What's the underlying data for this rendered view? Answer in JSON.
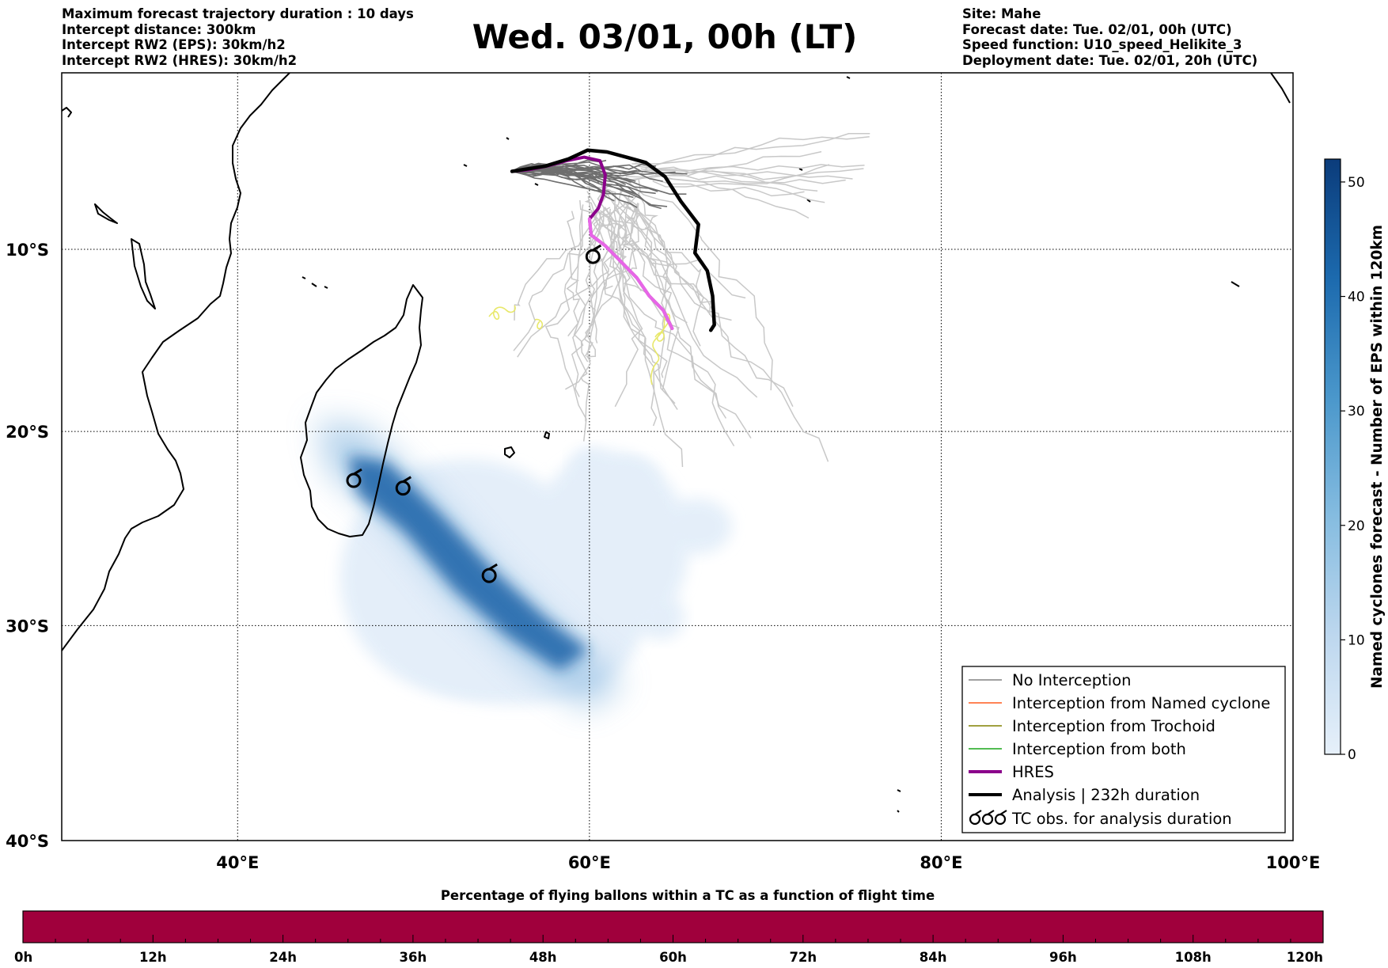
{
  "header": {
    "left": [
      "Maximum forecast trajectory duration : 10 days",
      "Intercept distance: 300km",
      "Intercept RW2 (EPS):  30km/h2",
      "Intercept RW2 (HRES): 30km/h2"
    ],
    "title": "Wed. 03/01, 00h (LT)",
    "right": [
      "Site: Mahe",
      "Forecast date: Tue. 02/01, 00h (UTC)",
      "Speed function: U10_speed_Helikite_3",
      "Deployment date: Tue. 02/01, 20h (UTC)"
    ]
  },
  "map": {
    "lon_range": [
      30,
      100
    ],
    "lat_range": [
      -40,
      0
    ],
    "lon_ticks": [
      {
        "value": 40,
        "label": "40°E"
      },
      {
        "value": 60,
        "label": "60°E"
      },
      {
        "value": 80,
        "label": "80°E"
      },
      {
        "value": 100,
        "label": "100°E"
      }
    ],
    "lat_ticks": [
      {
        "value": -10,
        "label": "10°S"
      },
      {
        "value": -20,
        "label": "20°S"
      },
      {
        "value": -30,
        "label": "30°S"
      },
      {
        "value": -40,
        "label": "40°S"
      }
    ],
    "grid": true,
    "tc_obs": [
      {
        "lon": 60.2,
        "lat": -10.4
      },
      {
        "lon": 46.6,
        "lat": -22.6
      },
      {
        "lon": 49.4,
        "lat": -23.0
      },
      {
        "lon": 54.3,
        "lat": -27.5
      }
    ],
    "analysis_track": [
      [
        55.6,
        -5.6
      ],
      [
        57.5,
        -5.3
      ],
      [
        58.8,
        -4.9
      ],
      [
        59.9,
        -4.4
      ],
      [
        61.0,
        -4.5
      ],
      [
        62.1,
        -4.8
      ],
      [
        63.2,
        -5.1
      ],
      [
        64.3,
        -5.9
      ],
      [
        65.2,
        -7.3
      ],
      [
        66.2,
        -8.6
      ],
      [
        66.0,
        -10.2
      ],
      [
        66.7,
        -11.2
      ],
      [
        67.0,
        -12.6
      ],
      [
        67.1,
        -14.2
      ],
      [
        66.9,
        -14.5
      ]
    ],
    "hres_track": [
      [
        55.6,
        -5.6
      ],
      [
        56.6,
        -5.5
      ],
      [
        57.6,
        -5.3
      ],
      [
        58.7,
        -5.0
      ],
      [
        59.7,
        -4.8
      ],
      [
        60.6,
        -5.0
      ],
      [
        60.9,
        -5.8
      ],
      [
        60.8,
        -6.9
      ],
      [
        60.5,
        -7.7
      ],
      [
        60.0,
        -8.3
      ],
      [
        60.1,
        -9.2
      ],
      [
        60.9,
        -9.8
      ],
      [
        61.8,
        -10.7
      ],
      [
        62.7,
        -11.6
      ],
      [
        63.4,
        -12.6
      ],
      [
        64.2,
        -13.4
      ],
      [
        64.7,
        -14.4
      ]
    ],
    "density_core": [
      [
        46.3,
        -21.3
      ],
      [
        48.5,
        -21.6
      ],
      [
        51.5,
        -24.3
      ],
      [
        54.5,
        -27.2
      ],
      [
        57.5,
        -29.6
      ],
      [
        60.0,
        -31.2
      ],
      [
        58.3,
        -32.2
      ],
      [
        55.3,
        -30.5
      ],
      [
        52.3,
        -28.2
      ],
      [
        49.5,
        -25.3
      ],
      [
        46.8,
        -23.3
      ]
    ]
  },
  "colorbar_right": {
    "label": "Named cyclones forecast - Number of EPS within 120km",
    "ticks": [
      0,
      10,
      20,
      30,
      40,
      50
    ],
    "min": 0,
    "max": 52
  },
  "legend": {
    "items": [
      {
        "label": "No Interception",
        "color": "#808080"
      },
      {
        "label": "Interception from Named cyclone",
        "color": "#ff5a1e"
      },
      {
        "label": "Interception from Trochoid",
        "color": "#808000"
      },
      {
        "label": "Interception from both",
        "color": "#19a519"
      },
      {
        "label": "HRES",
        "color": "#8b008b"
      },
      {
        "label": "Analysis | 232h duration",
        "color": "#000000"
      },
      {
        "label": "TC obs. for analysis duration",
        "color": "#000000"
      }
    ]
  },
  "bottom_bar": {
    "title": "Percentage of flying ballons within a TC as a function of flight time",
    "ticks": [
      "0h",
      "12h",
      "24h",
      "36h",
      "48h",
      "60h",
      "72h",
      "84h",
      "96h",
      "108h",
      "120h"
    ],
    "color": "#a0003c",
    "value_percent": 100
  }
}
